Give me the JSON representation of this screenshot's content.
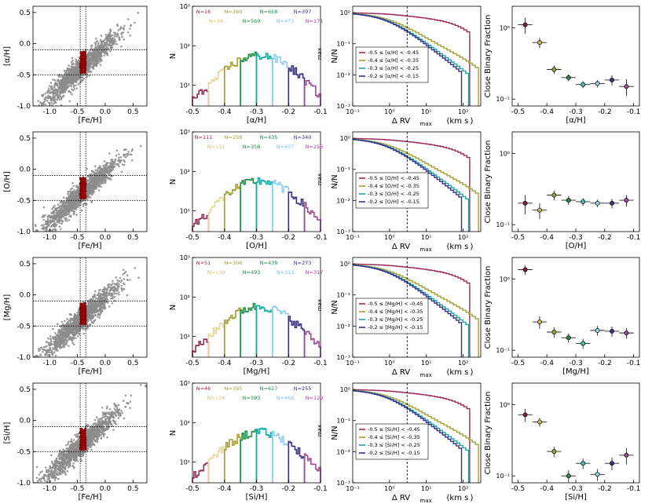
{
  "figure": {
    "description_colors": {
      "scatter": "#8c8c8c",
      "highlight": "#9a0000"
    }
  },
  "colors": {
    "b1": "#9b2a5a",
    "b2": "#a5a12f",
    "b3": "#2a8a4e",
    "b4": "#1aa8a0",
    "b5": "#7ac6e6",
    "b6": "#3b2f8f",
    "b7": "#a8489a",
    "lowbin": "#e0d080"
  },
  "rows": [
    {
      "element": "α",
      "label": "[α/H]",
      "hist_counts_top": [
        "N=16",
        "N=360",
        "N=658",
        "N=397"
      ],
      "hist_counts_bottom": [
        "N=94",
        "N=569",
        "N=473",
        "N=171"
      ],
      "legend": [
        "-0.5 ≤ [α/H] < -0.45",
        "-0.4 ≤ [α/H] < -0.35",
        "-0.3 ≤ [α/H] < -0.25",
        "-0.2 ≤ [α/H] < -0.15"
      ],
      "cbf": [
        1.1,
        0.62,
        0.26,
        0.2,
        0.16,
        0.165,
        0.185,
        0.15
      ],
      "cbf_err": [
        0.28,
        0.1,
        0.035,
        0.022,
        0.018,
        0.02,
        0.03,
        0.04
      ]
    },
    {
      "element": "O",
      "label": "[O/H]",
      "hist_counts_top": [
        "N=111",
        "N=258",
        "N=435",
        "N=340"
      ],
      "hist_counts_bottom": [
        "N=131",
        "N=358",
        "N=437",
        "N=255"
      ],
      "legend": [
        "-0.5 ≤ [O/H] < -0.45",
        "-0.4 ≤ [O/H] < -0.35",
        "-0.3 ≤ [O/H] < -0.25",
        "-0.2 ≤ [O/H] < -0.15"
      ],
      "cbf": [
        0.2,
        0.16,
        0.26,
        0.22,
        0.21,
        0.2,
        0.2,
        0.22
      ],
      "cbf_err": [
        0.06,
        0.04,
        0.04,
        0.03,
        0.025,
        0.025,
        0.03,
        0.04
      ]
    },
    {
      "element": "Mg",
      "label": "[Mg/H]",
      "hist_counts_top": [
        "N=51",
        "N=306",
        "N=439",
        "N=273"
      ],
      "hist_counts_bottom": [
        "N=130",
        "N=493",
        "N=313",
        "N=317"
      ],
      "legend": [
        "-0.5 ≤ [Mg/H] < -0.45",
        "-0.4 ≤ [Mg/H] < -0.35",
        "-0.3 ≤ [Mg/H] < -0.25",
        "-0.2 ≤ [Mg/H] < -0.15"
      ],
      "cbf": [
        1.35,
        0.25,
        0.18,
        0.15,
        0.125,
        0.19,
        0.185,
        0.175
      ],
      "cbf_err": [
        0.2,
        0.05,
        0.03,
        0.022,
        0.02,
        0.03,
        0.03,
        0.03
      ]
    },
    {
      "element": "Si",
      "label": "[Si/H]",
      "hist_counts_top": [
        "N=46",
        "N=395",
        "N=627",
        "N=255"
      ],
      "hist_counts_bottom": [
        "N=134",
        "N=593",
        "N=466",
        "N=129"
      ],
      "legend": [
        "-0.5 ≤ [Si/H] < -0.45",
        "-0.4 ≤ [Si/H] < -0.35",
        "-0.3 ≤ [Si/H] < -0.25",
        "-0.2 ≤ [Si/H] < -0.15"
      ],
      "cbf": [
        0.72,
        0.57,
        0.22,
        0.1,
        0.15,
        0.105,
        0.15,
        0.195
      ],
      "cbf_err": [
        0.15,
        0.08,
        0.035,
        0.02,
        0.025,
        0.02,
        0.03,
        0.05
      ]
    }
  ],
  "chart_data": [
    {
      "type": "scatter",
      "title": "",
      "xlabel": "[Fe/H]",
      "ylabel": "[α/H]",
      "xlim": [
        -1.3,
        0.75
      ],
      "ylim": [
        -1.0,
        0.6
      ],
      "xticks": [
        "-1.0",
        "-0.5",
        "0.0",
        "0.5"
      ],
      "yticks": [
        "-1.0",
        "-0.5",
        "0.0",
        "0.5"
      ],
      "guides": {
        "x": [
          -0.45,
          -0.35
        ],
        "y": [
          -0.5,
          -0.1
        ]
      }
    },
    {
      "type": "bar",
      "title": "",
      "xlabel": "[α/H]",
      "ylabel": "N",
      "xlim": [
        -0.5,
        -0.1
      ],
      "yscale": "log",
      "ylim": [
        3,
        1000
      ],
      "xticks": [
        "-0.5",
        "-0.4",
        "-0.3",
        "-0.2",
        "-0.1"
      ],
      "yticks": [
        "10¹",
        "10²",
        "10³"
      ]
    },
    {
      "type": "line",
      "title": "",
      "xlabel": "Δ RVmax  (km s⁻¹)",
      "ylabel": "N/Nmax",
      "xscale": "log",
      "yscale": "log",
      "xlim": [
        0.1,
        300
      ],
      "ylim": [
        0.001,
        1.6
      ],
      "xticks": [
        "10⁻¹",
        "10⁰",
        "10¹",
        "10²"
      ],
      "yticks": [
        "10⁻³",
        "10⁻²",
        "10⁻¹",
        "10⁰"
      ],
      "vline": 3
    },
    {
      "type": "scatter",
      "title": "",
      "xlabel": "[α/H]",
      "ylabel": "Close Binary Fraction",
      "xlim": [
        -0.52,
        -0.08
      ],
      "yscale": "log",
      "ylim": [
        0.08,
        2.0
      ],
      "xticks": [
        "-0.5",
        "-0.4",
        "-0.3",
        "-0.2",
        "-0.1"
      ],
      "yticks": [
        "10⁻¹",
        "10⁰"
      ],
      "x": [
        -0.475,
        -0.425,
        -0.375,
        -0.325,
        -0.275,
        -0.225,
        -0.175,
        -0.125
      ]
    }
  ],
  "ax_labels": {
    "scatter_x": "[Fe/H]",
    "hist_y": "N",
    "cdf_y": "N/N",
    "cdf_y_sub": "max",
    "cdf_x": "Δ RV",
    "cdf_x_sub": "max",
    "cdf_x_units": "(km s",
    "cdf_x_units_tail": ")",
    "cbf_y": "Close Binary Fraction"
  }
}
